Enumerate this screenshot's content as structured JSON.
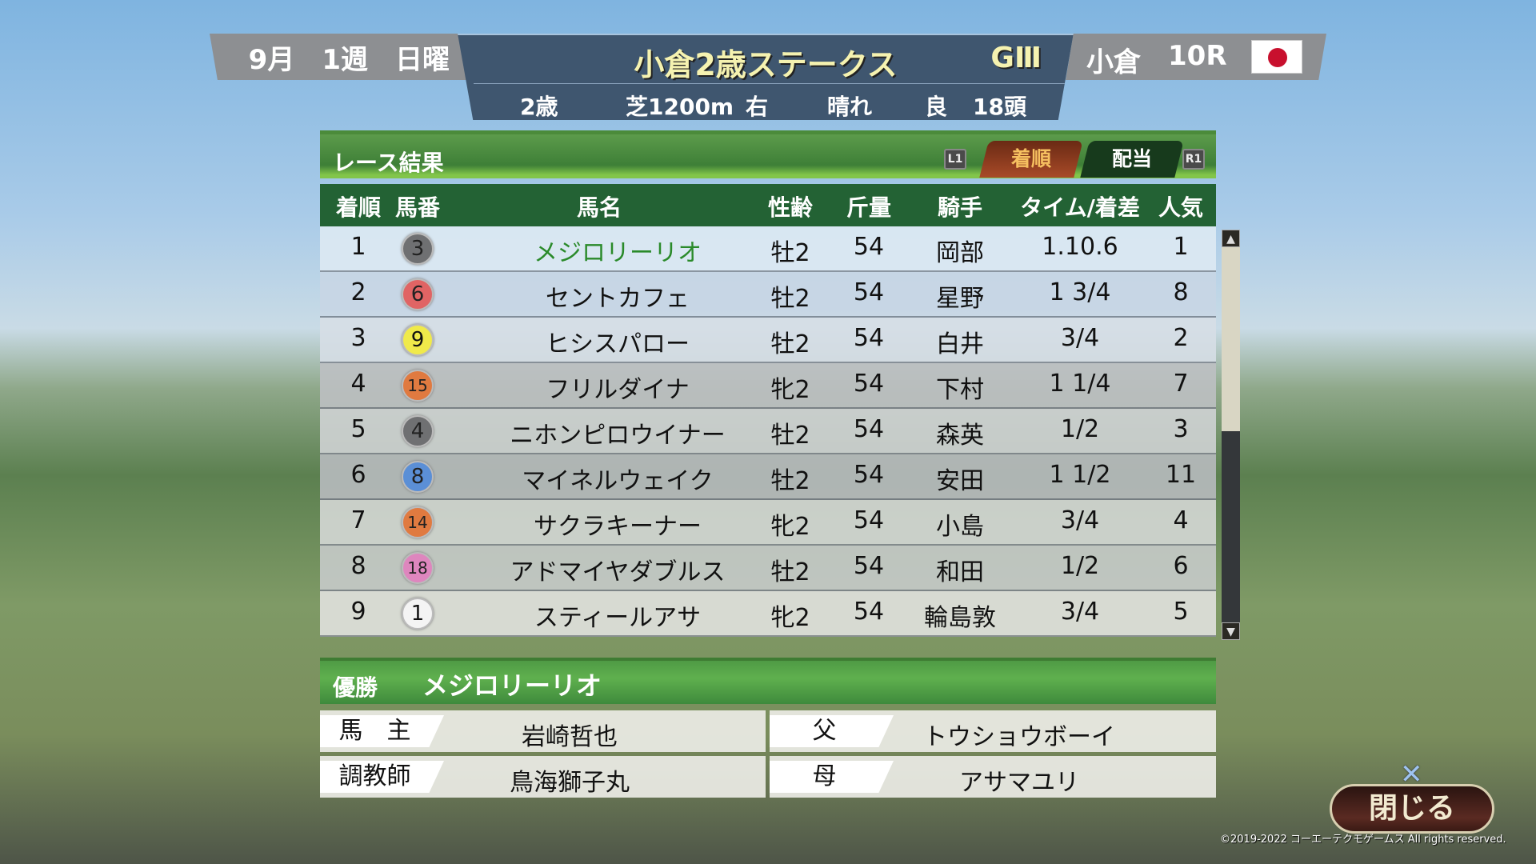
{
  "header": {
    "month": "9月",
    "week": "1週",
    "day": "日曜",
    "race_name": "小倉2歳ステークス",
    "grade": "GⅢ",
    "age": "2歳",
    "surface_distance": "芝1200m",
    "direction": "右",
    "weather": "晴れ",
    "track_condition": "良",
    "runners": "18頭",
    "venue": "小倉",
    "race_number": "10R",
    "flag": "japan-flag"
  },
  "panel": {
    "title": "レース結果",
    "l1": "L1",
    "r1": "R1",
    "tabs": [
      {
        "label": "着順",
        "active": true
      },
      {
        "label": "配当",
        "active": false
      }
    ]
  },
  "table": {
    "columns": [
      "着順",
      "馬番",
      "馬名",
      "性齢",
      "斤量",
      "騎手",
      "タイム/着差",
      "人気"
    ],
    "rows": [
      {
        "rank": "1",
        "num": "3",
        "name": "メジロリーリオ",
        "sexage": "牡2",
        "weight": "54",
        "jockey": "岡部",
        "time": "1.10.6",
        "pop": "1",
        "gate_color": "#6f7072"
      },
      {
        "rank": "2",
        "num": "6",
        "name": "セントカフェ",
        "sexage": "牡2",
        "weight": "54",
        "jockey": "星野",
        "time": "1 3/4",
        "pop": "8",
        "gate_color": "#e06464"
      },
      {
        "rank": "3",
        "num": "9",
        "name": "ヒシスパロー",
        "sexage": "牡2",
        "weight": "54",
        "jockey": "白井",
        "time": "3/4",
        "pop": "2",
        "gate_color": "#f0ea4a"
      },
      {
        "rank": "4",
        "num": "15",
        "name": "フリルダイナ",
        "sexage": "牝2",
        "weight": "54",
        "jockey": "下村",
        "time": "1 1/4",
        "pop": "7",
        "gate_color": "#e07a40"
      },
      {
        "rank": "5",
        "num": "4",
        "name": "ニホンピロウイナー",
        "sexage": "牡2",
        "weight": "54",
        "jockey": "森英",
        "time": "1/2",
        "pop": "3",
        "gate_color": "#6f7072"
      },
      {
        "rank": "6",
        "num": "8",
        "name": "マイネルウェイク",
        "sexage": "牡2",
        "weight": "54",
        "jockey": "安田",
        "time": "1 1/2",
        "pop": "11",
        "gate_color": "#5b8fd6"
      },
      {
        "rank": "7",
        "num": "14",
        "name": "サクラキーナー",
        "sexage": "牝2",
        "weight": "54",
        "jockey": "小島",
        "time": "3/4",
        "pop": "4",
        "gate_color": "#e07a40"
      },
      {
        "rank": "8",
        "num": "18",
        "name": "アドマイヤダブルス",
        "sexage": "牡2",
        "weight": "54",
        "jockey": "和田",
        "time": "1/2",
        "pop": "6",
        "gate_color": "#de86be"
      },
      {
        "rank": "9",
        "num": "1",
        "name": "スティールアサ",
        "sexage": "牝2",
        "weight": "54",
        "jockey": "輪島敦",
        "time": "3/4",
        "pop": "5",
        "gate_color": "#f4f4f4"
      }
    ]
  },
  "winner": {
    "label": "優勝",
    "name": "メジロリーリオ",
    "owner_label": "馬　主",
    "owner": "岩崎哲也",
    "trainer_label": "調教師",
    "trainer": "鳥海獅子丸",
    "sire_label": "父",
    "sire": "トウショウボーイ",
    "dam_label": "母",
    "dam": "アサマユリ"
  },
  "close_label": "閉じる",
  "close_icon": "cross-button-icon",
  "copyright": "©2019-2022 コーエーテクモゲームス All rights reserved.",
  "colors": {
    "winner_name": "#2a8a2a",
    "active_tab": "#8a3a1c",
    "inactive_tab": "#173a1c",
    "table_header": "#236234"
  }
}
